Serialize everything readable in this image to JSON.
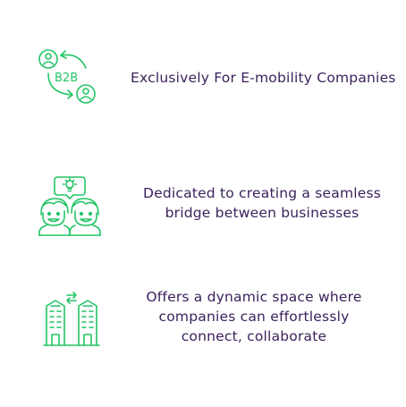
{
  "colors": {
    "accent_green": "#22c466",
    "text_purple": "#3a1f5a",
    "background": "#ffffff"
  },
  "features": [
    {
      "icon": "b2b-exchange-icon",
      "icon_label": "B2B",
      "lines": [
        "Exclusively For E-mobility Companies"
      ]
    },
    {
      "icon": "collaboration-idea-icon",
      "lines": [
        "Dedicated to creating a seamless",
        "bridge between businesses"
      ]
    },
    {
      "icon": "connected-buildings-icon",
      "lines": [
        "Offers a dynamic space where",
        "companies can effortlessly",
        "connect, collaborate"
      ]
    }
  ]
}
